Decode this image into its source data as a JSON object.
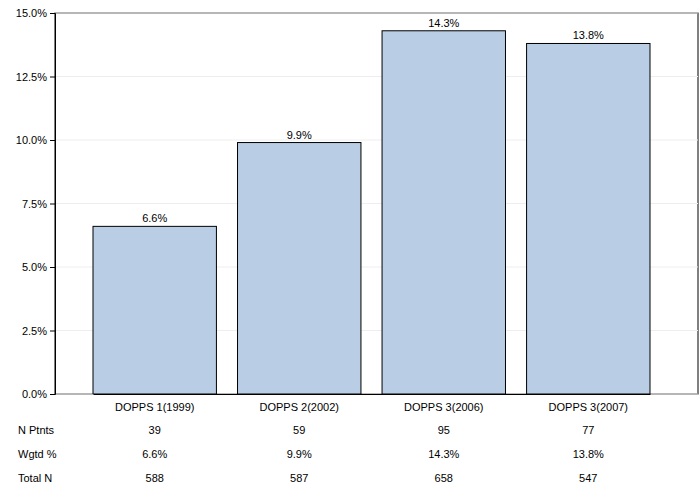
{
  "chart_data": {
    "type": "bar",
    "categories": [
      "DOPPS 1(1999)",
      "DOPPS 2(2002)",
      "DOPPS 3(2006)",
      "DOPPS 3(2007)"
    ],
    "values": [
      6.6,
      9.9,
      14.3,
      13.8
    ],
    "value_labels": [
      "6.6%",
      "9.9%",
      "14.3%",
      "13.8%"
    ],
    "color": "#b9cde5",
    "ylim": [
      0,
      15
    ],
    "yticks": [
      {
        "value": 0,
        "label": "0.0%"
      },
      {
        "value": 2.5,
        "label": "2.5%"
      },
      {
        "value": 5,
        "label": "5.0%"
      },
      {
        "value": 7.5,
        "label": "7.5%"
      },
      {
        "value": 10,
        "label": "10.0%"
      },
      {
        "value": 12.5,
        "label": "12.5%"
      },
      {
        "value": 15,
        "label": "15.0%"
      }
    ],
    "grid": true,
    "data_labels": true
  },
  "table": {
    "rows": [
      {
        "label": "N Ptnts",
        "values": [
          39,
          59,
          95,
          77
        ]
      },
      {
        "label": "Wgtd %",
        "values": [
          6.6,
          9.9,
          14.3,
          13.8
        ],
        "value_labels": [
          "6.6%",
          "9.9%",
          "14.3%",
          "13.8%"
        ]
      },
      {
        "label": "Total N",
        "values": [
          588,
          587,
          658,
          547
        ]
      }
    ]
  }
}
